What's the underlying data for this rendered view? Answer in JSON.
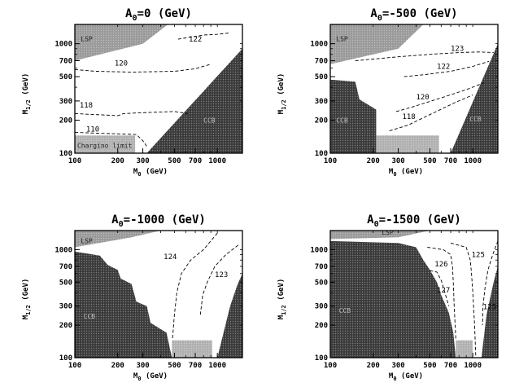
{
  "figure": {
    "background": "#ffffff"
  },
  "colors": {
    "lsp_region": "#9a9a9a",
    "ccb_region": "#3a3a3a",
    "chargino_region": "#b0b0b0",
    "frame": "#000000",
    "contour": "#000000"
  },
  "chart_data": [
    {
      "type": "contour",
      "title": "A0=0 (GeV)",
      "title_prefix": "A",
      "title_sub": "0",
      "title_suffix": "=0 (GeV)",
      "xlabel_prefix": "M",
      "xlabel_sub": "0",
      "xlabel_suffix": " (GeV)",
      "ylabel_prefix": "M",
      "ylabel_sub": "1/2",
      "ylabel_suffix": " (GeV)",
      "x_scale": "log",
      "y_scale": "log",
      "xlim": [
        100,
        1500
      ],
      "ylim": [
        100,
        1500
      ],
      "x_ticks": [
        100,
        200,
        300,
        500,
        700,
        1000
      ],
      "y_ticks": [
        100,
        200,
        300,
        500,
        700,
        1000
      ],
      "regions": [
        {
          "name": "LSP",
          "label": "LSP",
          "fill": "lsp_region",
          "points": [
            [
              100,
              1500
            ],
            [
              100,
              700
            ],
            [
              300,
              1000
            ],
            [
              450,
              1500
            ]
          ],
          "label_at": [
            110,
            1060
          ]
        },
        {
          "name": "dark-wedge",
          "label": "CCB",
          "fill": "ccb_region",
          "points": [
            [
              320,
              100
            ],
            [
              1500,
              900
            ],
            [
              1500,
              100
            ]
          ],
          "label_at": [
            800,
            190
          ]
        },
        {
          "name": "chargino",
          "label": "Chargino limit",
          "fill": "chargino_region",
          "points": [
            [
              100,
              100
            ],
            [
              100,
              145
            ],
            [
              265,
              145
            ],
            [
              265,
              100
            ]
          ],
          "label_at": [
            104,
            112
          ]
        }
      ],
      "contours": [
        {
          "label": "122",
          "label_at": [
            630,
            1050
          ],
          "points": [
            [
              530,
              1100
            ],
            [
              600,
              1130
            ],
            [
              800,
              1200
            ],
            [
              1000,
              1220
            ],
            [
              1200,
              1250
            ]
          ]
        },
        {
          "label": "120",
          "label_at": [
            190,
            630
          ],
          "points": [
            [
              100,
              580
            ],
            [
              140,
              560
            ],
            [
              250,
              550
            ],
            [
              500,
              560
            ],
            [
              700,
              590
            ],
            [
              900,
              650
            ]
          ]
        },
        {
          "label": "118",
          "label_at": [
            108,
            262
          ],
          "points": [
            [
              100,
              230
            ],
            [
              140,
              225
            ],
            [
              180,
              222
            ],
            [
              200,
              220
            ],
            [
              220,
              230
            ],
            [
              320,
              235
            ],
            [
              500,
              240
            ],
            [
              620,
              230
            ]
          ]
        },
        {
          "label": "110",
          "label_at": [
            120,
            158
          ],
          "points": [
            [
              100,
              155
            ],
            [
              150,
              152
            ],
            [
              200,
              150
            ],
            [
              270,
              148
            ],
            [
              300,
              130
            ],
            [
              320,
              115
            ]
          ]
        }
      ]
    },
    {
      "type": "contour",
      "title": "A0=-500 (GeV)",
      "title_prefix": "A",
      "title_sub": "0",
      "title_suffix": "=-500 (GeV)",
      "xlabel_prefix": "M",
      "xlabel_sub": "0",
      "xlabel_suffix": " (GeV)",
      "ylabel_prefix": "M",
      "ylabel_sub": "1/2",
      "ylabel_suffix": " (GeV)",
      "x_scale": "log",
      "y_scale": "log",
      "xlim": [
        100,
        1500
      ],
      "ylim": [
        100,
        1500
      ],
      "x_ticks": [
        100,
        200,
        300,
        500,
        700,
        1000
      ],
      "y_ticks": [
        100,
        200,
        300,
        500,
        700,
        1000
      ],
      "regions": [
        {
          "name": "LSP",
          "label": "LSP",
          "fill": "lsp_region",
          "points": [
            [
              100,
              1500
            ],
            [
              100,
              650
            ],
            [
              300,
              900
            ],
            [
              450,
              1500
            ]
          ],
          "label_at": [
            110,
            1060
          ]
        },
        {
          "name": "ccb-left",
          "label": "CCB",
          "fill": "ccb_region",
          "points": [
            [
              100,
              100
            ],
            [
              100,
              470
            ],
            [
              150,
              450
            ],
            [
              160,
              310
            ],
            [
              210,
              250
            ],
            [
              210,
              100
            ]
          ],
          "label_at": [
            110,
            190
          ]
        },
        {
          "name": "ccb-right",
          "label": "CCB",
          "fill": "ccb_region",
          "points": [
            [
              700,
              100
            ],
            [
              1500,
              1000
            ],
            [
              1500,
              100
            ]
          ],
          "label_at": [
            950,
            195
          ]
        },
        {
          "name": "chargino",
          "label": "",
          "fill": "chargino_region",
          "points": [
            [
              210,
              100
            ],
            [
              210,
              145
            ],
            [
              580,
              145
            ],
            [
              580,
              100
            ]
          ],
          "label_at": [
            300,
            110
          ]
        }
      ],
      "contours": [
        {
          "label": "123",
          "label_at": [
            700,
            860
          ],
          "points": [
            [
              150,
              700
            ],
            [
              300,
              760
            ],
            [
              500,
              800
            ],
            [
              800,
              830
            ],
            [
              1100,
              840
            ],
            [
              1400,
              830
            ]
          ]
        },
        {
          "label": "122",
          "label_at": [
            560,
            590
          ],
          "points": [
            [
              330,
              500
            ],
            [
              450,
              520
            ],
            [
              700,
              560
            ],
            [
              1000,
              620
            ],
            [
              1300,
              690
            ]
          ]
        },
        {
          "label": "120",
          "label_at": [
            400,
            310
          ],
          "points": [
            [
              290,
              240
            ],
            [
              380,
              265
            ],
            [
              600,
              320
            ],
            [
              900,
              380
            ],
            [
              1200,
              440
            ]
          ]
        },
        {
          "label": "118",
          "label_at": [
            320,
            205
          ],
          "points": [
            [
              260,
              160
            ],
            [
              350,
              180
            ],
            [
              500,
              225
            ],
            [
              750,
              290
            ],
            [
              1000,
              340
            ]
          ]
        }
      ]
    },
    {
      "type": "contour",
      "title": "A0=-1000 (GeV)",
      "title_prefix": "A",
      "title_sub": "0",
      "title_suffix": "=-1000 (GeV)",
      "xlabel_prefix": "M",
      "xlabel_sub": "0",
      "xlabel_suffix": " (GeV)",
      "ylabel_prefix": "M",
      "ylabel_sub": "1/2",
      "ylabel_suffix": " (GeV)",
      "x_scale": "log",
      "y_scale": "log",
      "xlim": [
        100,
        1500
      ],
      "ylim": [
        100,
        1500
      ],
      "x_ticks": [
        100,
        200,
        300,
        500,
        700,
        1000
      ],
      "y_ticks": [
        100,
        200,
        300,
        500,
        700,
        1000
      ],
      "regions": [
        {
          "name": "LSP",
          "label": "LSP",
          "fill": "lsp_region",
          "points": [
            [
              100,
              1500
            ],
            [
              100,
              1050
            ],
            [
              250,
              1300
            ],
            [
              400,
              1500
            ]
          ],
          "label_at": [
            110,
            1150
          ]
        },
        {
          "name": "ccb-left",
          "label": "CCB",
          "fill": "ccb_region",
          "points": [
            [
              100,
              100
            ],
            [
              100,
              960
            ],
            [
              150,
              880
            ],
            [
              170,
              720
            ],
            [
              200,
              650
            ],
            [
              210,
              540
            ],
            [
              250,
              480
            ],
            [
              270,
              330
            ],
            [
              320,
              300
            ],
            [
              340,
              210
            ],
            [
              440,
              170
            ],
            [
              480,
              100
            ]
          ],
          "label_at": [
            115,
            230
          ]
        },
        {
          "name": "ccb-right",
          "label": "",
          "fill": "ccb_region",
          "points": [
            [
              1000,
              100
            ],
            [
              1230,
              300
            ],
            [
              1380,
              470
            ],
            [
              1500,
              600
            ],
            [
              1500,
              100
            ]
          ],
          "label_at": [
            1200,
            150
          ]
        },
        {
          "name": "chargino",
          "label": "",
          "fill": "chargino_region",
          "points": [
            [
              480,
              100
            ],
            [
              480,
              145
            ],
            [
              920,
              145
            ],
            [
              920,
              100
            ]
          ],
          "label_at": [
            600,
            110
          ]
        }
      ],
      "contours": [
        {
          "label": "124",
          "label_at": [
            420,
            820
          ],
          "points": [
            [
              1000,
              1420
            ],
            [
              800,
              1000
            ],
            [
              650,
              800
            ],
            [
              560,
              600
            ],
            [
              520,
              400
            ],
            [
              500,
              250
            ],
            [
              485,
              150
            ]
          ]
        },
        {
          "label": "123",
          "label_at": [
            960,
            560
          ],
          "points": [
            [
              1400,
              1100
            ],
            [
              1150,
              900
            ],
            [
              960,
              700
            ],
            [
              850,
              500
            ],
            [
              790,
              380
            ],
            [
              760,
              250
            ]
          ]
        }
      ],
      "extra_marks": [
        {
          "label": "",
          "label_at": [
            1300,
            720
          ]
        }
      ]
    },
    {
      "type": "contour",
      "title": "A0=-1500 (GeV)",
      "title_prefix": "A",
      "title_sub": "0",
      "title_suffix": "=-1500 (GeV)",
      "xlabel_prefix": "M",
      "xlabel_sub": "0",
      "xlabel_suffix": " (GeV)",
      "ylabel_prefix": "M",
      "ylabel_sub": "1/2",
      "ylabel_suffix": " (GeV)",
      "x_scale": "log",
      "y_scale": "log",
      "xlim": [
        100,
        1500
      ],
      "ylim": [
        100,
        1500
      ],
      "x_ticks": [
        100,
        200,
        300,
        500,
        700,
        1000
      ],
      "y_ticks": [
        100,
        200,
        300,
        500,
        700,
        1000
      ],
      "regions": [
        {
          "name": "LSP",
          "label": "LSP",
          "fill": "lsp_region",
          "points": [
            [
              100,
              1500
            ],
            [
              100,
              1250
            ],
            [
              300,
              1300
            ],
            [
              500,
              1500
            ]
          ],
          "label_at": [
            230,
            1380
          ]
        },
        {
          "name": "ccb-main",
          "label": "CCB",
          "fill": "ccb_region",
          "points": [
            [
              100,
              100
            ],
            [
              100,
              1200
            ],
            [
              300,
              1150
            ],
            [
              400,
              1050
            ],
            [
              450,
              800
            ],
            [
              500,
              650
            ],
            [
              560,
              500
            ],
            [
              600,
              380
            ],
            [
              680,
              260
            ],
            [
              730,
              170
            ],
            [
              760,
              100
            ]
          ],
          "label_at": [
            115,
            260
          ]
        },
        {
          "name": "ccb-right",
          "label": "",
          "fill": "ccb_region",
          "points": [
            [
              1150,
              100
            ],
            [
              1250,
              250
            ],
            [
              1400,
              500
            ],
            [
              1500,
              700
            ],
            [
              1500,
              100
            ]
          ],
          "label_at": [
            1200,
            150
          ]
        },
        {
          "name": "chargino",
          "label": "",
          "fill": "chargino_region",
          "points": [
            [
              760,
              100
            ],
            [
              760,
              145
            ],
            [
              1000,
              145
            ],
            [
              1000,
              100
            ]
          ],
          "label_at": [
            800,
            110
          ]
        }
      ],
      "contours": [
        {
          "label": "126",
          "label_at": [
            540,
            700
          ],
          "points": [
            [
              480,
              1050
            ],
            [
              620,
              1000
            ],
            [
              700,
              900
            ],
            [
              720,
              700
            ],
            [
              730,
              500
            ],
            [
              740,
              300
            ],
            [
              760,
              150
            ]
          ]
        },
        {
          "label": "127",
          "label_at": [
            560,
            400
          ],
          "points": [
            [
              500,
              640
            ],
            [
              560,
              620
            ],
            [
              600,
              520
            ],
            [
              630,
              420
            ],
            [
              680,
              300
            ]
          ]
        },
        {
          "label": "125",
          "label_at": [
            980,
            850
          ],
          "points": [
            [
              700,
              1150
            ],
            [
              900,
              1050
            ],
            [
              960,
              800
            ],
            [
              980,
              600
            ],
            [
              1000,
              400
            ],
            [
              1030,
              200
            ],
            [
              1050,
              100
            ]
          ]
        },
        {
          "label": "125",
          "label_at": [
            1180,
            280
          ],
          "points": [
            [
              1500,
              1200
            ],
            [
              1380,
              900
            ],
            [
              1280,
              650
            ],
            [
              1220,
              450
            ],
            [
              1180,
              300
            ],
            [
              1170,
              200
            ]
          ]
        }
      ]
    }
  ]
}
